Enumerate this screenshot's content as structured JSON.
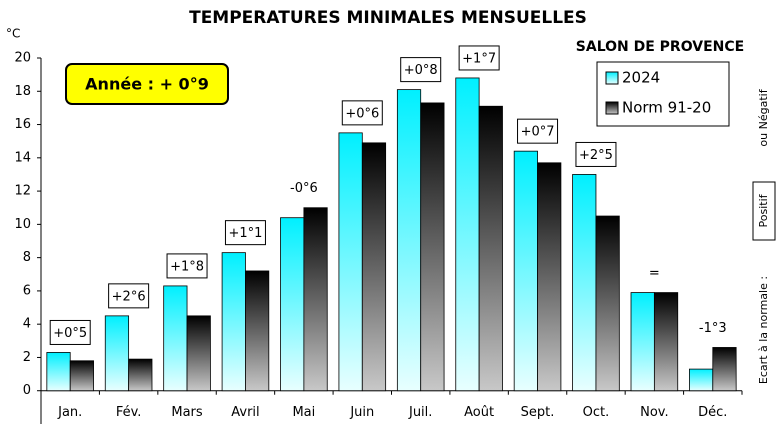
{
  "chart_data": {
    "type": "bar",
    "title": "TEMPERATURES MINIMALES MENSUELLES",
    "subtitle": "SALON DE PROVENCE",
    "y_unit": "°C",
    "year_note": "Année : + 0°9",
    "side_note": {
      "label": "Ecart à la normale :",
      "positive": "Positif",
      "negative": "ou Négatif"
    },
    "categories": [
      "Jan.",
      "Fév.",
      "Mars",
      "Avril",
      "Mai",
      "Juin",
      "Juil.",
      "Août",
      "Sept.",
      "Oct.",
      "Nov.",
      "Déc."
    ],
    "series": [
      {
        "name": "2024",
        "color": "#00f0ff",
        "values": [
          2.3,
          4.5,
          6.3,
          8.3,
          10.4,
          15.5,
          18.1,
          18.8,
          14.4,
          13.0,
          5.9,
          1.3
        ]
      },
      {
        "name": "Norm 91-20",
        "color": "#000000",
        "values": [
          1.8,
          1.9,
          4.5,
          7.2,
          11.0,
          14.9,
          17.3,
          17.1,
          13.7,
          10.5,
          5.9,
          2.6
        ]
      }
    ],
    "annotations": [
      "+0°5",
      "+2°6",
      "+1°8",
      "+1°1",
      "-0°6",
      "+0°6",
      "+0°8",
      "+1°7",
      "+0°7",
      "+2°5",
      "=",
      "-1°3"
    ],
    "ylim": [
      -2,
      20
    ],
    "yticks": [
      0,
      2,
      4,
      6,
      8,
      10,
      12,
      14,
      16,
      18,
      20
    ],
    "grid": false
  }
}
